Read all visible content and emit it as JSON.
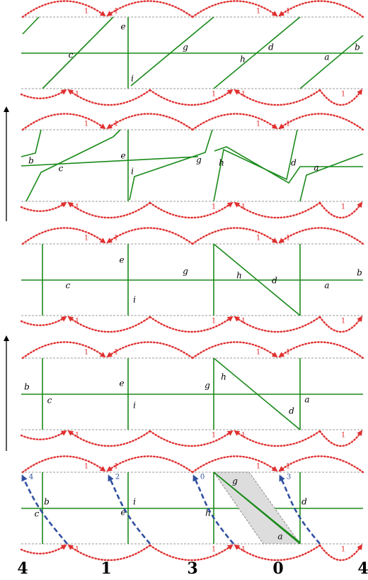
{
  "panels": [
    {
      "labels": [
        "c",
        "e",
        "i",
        "g",
        "h",
        "d",
        "a",
        "b"
      ]
    },
    {
      "labels": [
        "b",
        "c",
        "e",
        "i",
        "g",
        "h",
        "d",
        "a"
      ]
    },
    {
      "labels": [
        "c",
        "e",
        "i",
        "g",
        "h",
        "d",
        "a",
        "b"
      ]
    },
    {
      "labels": [
        "b",
        "c",
        "e",
        "i",
        "g",
        "h",
        "d",
        "a"
      ]
    },
    {
      "labels": [
        "c",
        "b",
        "e",
        "i",
        "h",
        "g",
        "a",
        "d"
      ]
    }
  ],
  "arc_rows": [
    {
      "labels": [
        "1",
        "1",
        "1",
        "1"
      ]
    },
    {
      "labels": [
        "1",
        "1",
        "1",
        "1"
      ]
    },
    {
      "labels": [
        "1",
        "1",
        "1",
        "1"
      ]
    },
    {
      "labels": [
        "1",
        "1",
        "1",
        "1"
      ]
    },
    {
      "labels": [
        "1",
        "1",
        "1",
        "1"
      ]
    },
    {
      "labels": [
        "1",
        "1",
        "1",
        "1"
      ]
    },
    {
      "labels": [
        "1",
        "1",
        "1",
        "1"
      ]
    },
    {
      "labels": [
        "1",
        "1",
        "1",
        "1"
      ]
    },
    {
      "labels": [
        "1",
        "1",
        "1",
        "1"
      ]
    },
    {
      "labels": [
        "1",
        "1",
        "1",
        "1"
      ]
    }
  ],
  "blue_labels": [
    "4",
    "2",
    "0",
    "3"
  ],
  "bottom_numbers": [
    "4",
    "1",
    "3",
    "0",
    "4"
  ]
}
